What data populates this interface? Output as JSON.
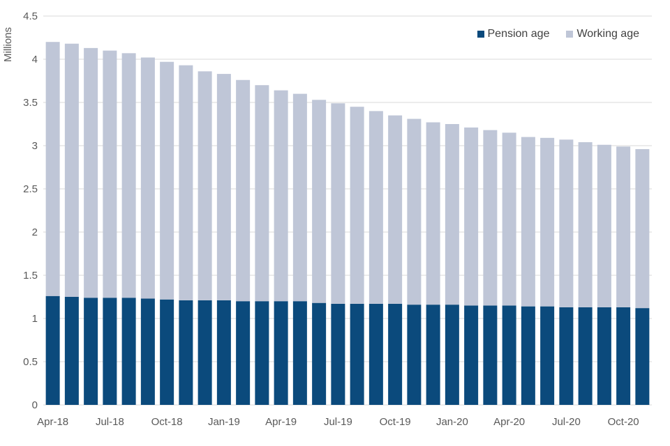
{
  "chart_data": {
    "type": "bar",
    "stacked": true,
    "title": "",
    "xlabel": "",
    "ylabel": "Millions",
    "ylim": [
      0,
      4.5
    ],
    "y_tick_step": 0.5,
    "y_tick_labels": [
      "0",
      "0.5",
      "1",
      "1.5",
      "2",
      "2.5",
      "3",
      "3.5",
      "4",
      "4.5"
    ],
    "grid": "horizontal",
    "legend_position": "top-right",
    "categories": [
      "Apr-18",
      "May-18",
      "Jun-18",
      "Jul-18",
      "Aug-18",
      "Sep-18",
      "Oct-18",
      "Nov-18",
      "Dec-18",
      "Jan-19",
      "Feb-19",
      "Mar-19",
      "Apr-19",
      "May-19",
      "Jun-19",
      "Jul-19",
      "Aug-19",
      "Sep-19",
      "Oct-19",
      "Nov-19",
      "Dec-19",
      "Jan-20",
      "Feb-20",
      "Mar-20",
      "Apr-20",
      "May-20",
      "Jun-20",
      "Jul-20",
      "Aug-20",
      "Sep-20",
      "Oct-20",
      "Nov-20"
    ],
    "x_tick_labels": [
      "Apr-18",
      "Jul-18",
      "Oct-18",
      "Jan-19",
      "Apr-19",
      "Jul-19",
      "Oct-19",
      "Jan-20",
      "Apr-20",
      "Jul-20",
      "Oct-20"
    ],
    "x_tick_every": 3,
    "series": [
      {
        "name": "Pension age",
        "color": "#0b4a7c",
        "values": [
          1.26,
          1.25,
          1.24,
          1.24,
          1.24,
          1.23,
          1.22,
          1.21,
          1.21,
          1.21,
          1.2,
          1.2,
          1.2,
          1.2,
          1.18,
          1.17,
          1.17,
          1.17,
          1.17,
          1.16,
          1.16,
          1.16,
          1.15,
          1.15,
          1.15,
          1.14,
          1.14,
          1.13,
          1.13,
          1.13,
          1.13,
          1.12
        ]
      },
      {
        "name": "Working age",
        "color": "#bfc6d7",
        "values": [
          2.94,
          2.93,
          2.89,
          2.86,
          2.83,
          2.79,
          2.75,
          2.72,
          2.65,
          2.62,
          2.56,
          2.5,
          2.44,
          2.4,
          2.35,
          2.32,
          2.28,
          2.23,
          2.18,
          2.15,
          2.11,
          2.09,
          2.06,
          2.03,
          2.0,
          1.96,
          1.95,
          1.94,
          1.91,
          1.88,
          1.86,
          1.84
        ]
      }
    ],
    "totals": [
      4.2,
      4.18,
      4.13,
      4.1,
      4.07,
      4.02,
      3.97,
      3.93,
      3.86,
      3.83,
      3.76,
      3.7,
      3.64,
      3.6,
      3.53,
      3.49,
      3.45,
      3.4,
      3.35,
      3.31,
      3.27,
      3.25,
      3.21,
      3.18,
      3.15,
      3.1,
      3.09,
      3.07,
      3.04,
      3.01,
      2.99,
      2.96
    ],
    "colors": {
      "gridline": "#d9d9d9",
      "axis_text": "#595959",
      "legend_text": "#404040",
      "background": "#ffffff"
    }
  }
}
